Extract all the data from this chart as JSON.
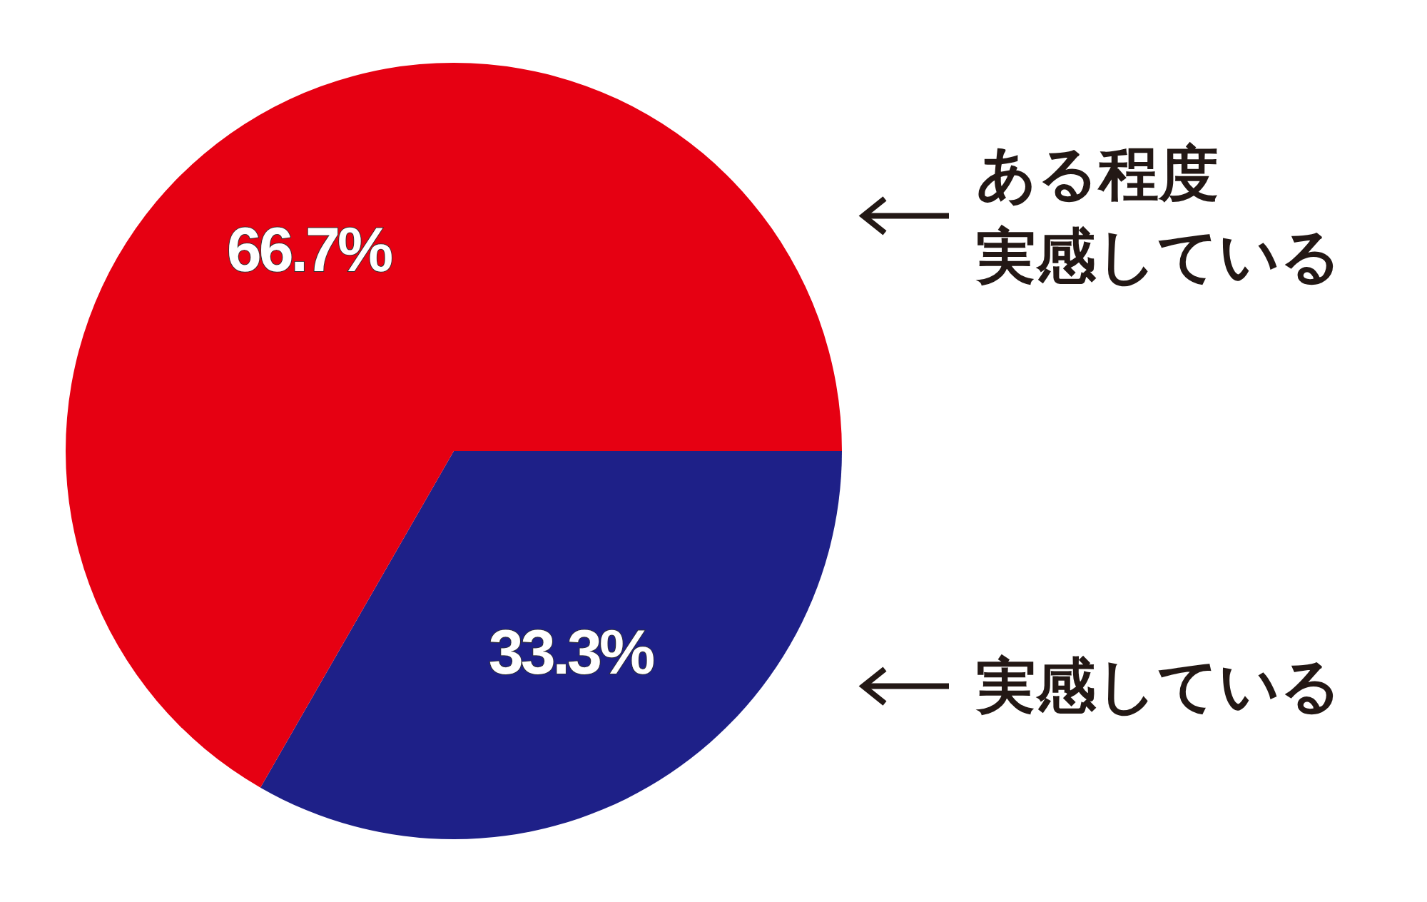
{
  "chart_data": {
    "type": "pie",
    "categories": [
      "実感している",
      "ある程度実感している"
    ],
    "values": [
      33.3,
      66.7
    ],
    "colors": [
      "#1e2088",
      "#e60012"
    ],
    "value_labels": [
      "33.3%",
      "66.7%"
    ]
  }
}
